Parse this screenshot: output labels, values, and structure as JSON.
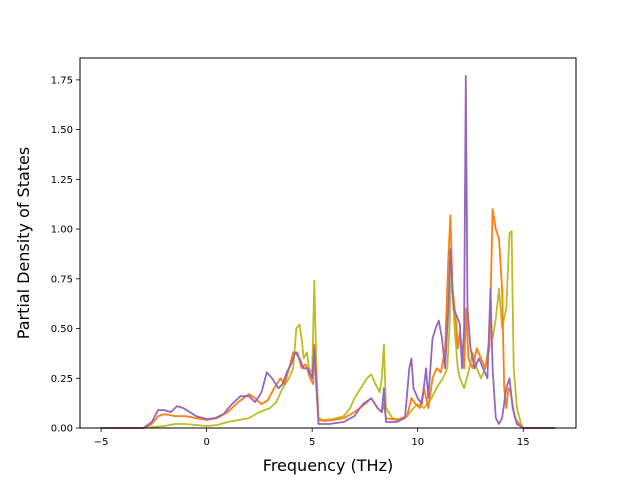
{
  "chart_data": {
    "type": "line",
    "title": "",
    "xlabel": "Frequency (THz)",
    "ylabel": "Partial Density of States",
    "xlim": [
      -6.0,
      17.5
    ],
    "ylim": [
      0.0,
      1.86
    ],
    "xticks": [
      -5,
      0,
      5,
      10,
      15
    ],
    "xtick_labels": [
      "−5",
      "0",
      "5",
      "10",
      "15"
    ],
    "yticks": [
      0.0,
      0.25,
      0.5,
      0.75,
      1.0,
      1.25,
      1.5,
      1.75
    ],
    "ytick_labels": [
      "0.00",
      "0.25",
      "0.50",
      "0.75",
      "1.00",
      "1.25",
      "1.50",
      "1.75"
    ],
    "grid": false,
    "legend": "none",
    "series": [
      {
        "color": "#bcbd22",
        "points": [
          [
            -5.0,
            0
          ],
          [
            -3.0,
            0
          ],
          [
            -2.5,
            0.005
          ],
          [
            -2.0,
            0.01
          ],
          [
            -1.5,
            0.02
          ],
          [
            -1.0,
            0.02
          ],
          [
            -0.5,
            0.015
          ],
          [
            0.0,
            0.01
          ],
          [
            0.5,
            0.015
          ],
          [
            1.0,
            0.03
          ],
          [
            1.5,
            0.04
          ],
          [
            2.0,
            0.05
          ],
          [
            2.5,
            0.08
          ],
          [
            3.0,
            0.1
          ],
          [
            3.3,
            0.13
          ],
          [
            3.6,
            0.2
          ],
          [
            3.9,
            0.25
          ],
          [
            4.1,
            0.3
          ],
          [
            4.25,
            0.5
          ],
          [
            4.4,
            0.52
          ],
          [
            4.5,
            0.45
          ],
          [
            4.6,
            0.35
          ],
          [
            4.75,
            0.38
          ],
          [
            4.85,
            0.3
          ],
          [
            5.0,
            0.28
          ],
          [
            5.1,
            0.74
          ],
          [
            5.2,
            0.3
          ],
          [
            5.3,
            0.05
          ],
          [
            5.5,
            0.04
          ],
          [
            6.0,
            0.045
          ],
          [
            6.5,
            0.06
          ],
          [
            6.8,
            0.1
          ],
          [
            7.0,
            0.15
          ],
          [
            7.3,
            0.2
          ],
          [
            7.6,
            0.25
          ],
          [
            7.8,
            0.27
          ],
          [
            8.0,
            0.22
          ],
          [
            8.2,
            0.18
          ],
          [
            8.3,
            0.25
          ],
          [
            8.4,
            0.42
          ],
          [
            8.5,
            0.1
          ],
          [
            8.8,
            0.05
          ],
          [
            9.2,
            0.04
          ],
          [
            9.5,
            0.06
          ],
          [
            9.8,
            0.1
          ],
          [
            10.0,
            0.12
          ],
          [
            10.3,
            0.1
          ],
          [
            10.6,
            0.14
          ],
          [
            10.8,
            0.18
          ],
          [
            11.0,
            0.22
          ],
          [
            11.2,
            0.25
          ],
          [
            11.4,
            0.3
          ],
          [
            11.5,
            0.5
          ],
          [
            11.6,
            0.8
          ],
          [
            11.75,
            0.5
          ],
          [
            11.9,
            0.3
          ],
          [
            12.0,
            0.25
          ],
          [
            12.2,
            0.2
          ],
          [
            12.4,
            0.28
          ],
          [
            12.6,
            0.38
          ],
          [
            12.8,
            0.3
          ],
          [
            13.0,
            0.25
          ],
          [
            13.2,
            0.3
          ],
          [
            13.4,
            0.45
          ],
          [
            13.55,
            0.45
          ],
          [
            13.7,
            0.55
          ],
          [
            13.85,
            0.7
          ],
          [
            14.0,
            0.5
          ],
          [
            14.2,
            0.6
          ],
          [
            14.35,
            0.98
          ],
          [
            14.45,
            0.99
          ],
          [
            14.55,
            0.3
          ],
          [
            14.7,
            0.1
          ],
          [
            14.9,
            0.02
          ],
          [
            15.0,
            0
          ],
          [
            16.5,
            0
          ]
        ]
      },
      {
        "color": "#ff7f0e",
        "points": [
          [
            -5.0,
            0
          ],
          [
            -3.0,
            0
          ],
          [
            -2.6,
            0.02
          ],
          [
            -2.3,
            0.06
          ],
          [
            -2.0,
            0.07
          ],
          [
            -1.5,
            0.06
          ],
          [
            -1.0,
            0.06
          ],
          [
            -0.5,
            0.05
          ],
          [
            0.0,
            0.04
          ],
          [
            0.5,
            0.05
          ],
          [
            1.0,
            0.08
          ],
          [
            1.5,
            0.13
          ],
          [
            2.0,
            0.17
          ],
          [
            2.3,
            0.15
          ],
          [
            2.6,
            0.12
          ],
          [
            2.9,
            0.14
          ],
          [
            3.2,
            0.2
          ],
          [
            3.5,
            0.25
          ],
          [
            3.7,
            0.22
          ],
          [
            3.9,
            0.3
          ],
          [
            4.1,
            0.38
          ],
          [
            4.3,
            0.38
          ],
          [
            4.5,
            0.3
          ],
          [
            4.7,
            0.32
          ],
          [
            4.9,
            0.25
          ],
          [
            5.05,
            0.22
          ],
          [
            5.1,
            0.42
          ],
          [
            5.2,
            0.25
          ],
          [
            5.3,
            0.04
          ],
          [
            5.6,
            0.035
          ],
          [
            6.0,
            0.04
          ],
          [
            6.5,
            0.05
          ],
          [
            7.0,
            0.08
          ],
          [
            7.5,
            0.12
          ],
          [
            7.8,
            0.15
          ],
          [
            8.1,
            0.1
          ],
          [
            8.3,
            0.08
          ],
          [
            8.4,
            0.12
          ],
          [
            8.5,
            0.05
          ],
          [
            9.0,
            0.04
          ],
          [
            9.5,
            0.06
          ],
          [
            9.7,
            0.15
          ],
          [
            9.9,
            0.12
          ],
          [
            10.1,
            0.1
          ],
          [
            10.3,
            0.2
          ],
          [
            10.5,
            0.1
          ],
          [
            10.7,
            0.25
          ],
          [
            10.9,
            0.3
          ],
          [
            11.1,
            0.28
          ],
          [
            11.3,
            0.4
          ],
          [
            11.45,
            0.85
          ],
          [
            11.55,
            1.07
          ],
          [
            11.65,
            0.7
          ],
          [
            11.8,
            0.55
          ],
          [
            11.9,
            0.4
          ],
          [
            12.0,
            0.48
          ],
          [
            12.2,
            0.3
          ],
          [
            12.3,
            0.6
          ],
          [
            12.4,
            0.35
          ],
          [
            12.6,
            0.3
          ],
          [
            12.8,
            0.4
          ],
          [
            13.0,
            0.35
          ],
          [
            13.2,
            0.3
          ],
          [
            13.4,
            0.4
          ],
          [
            13.55,
            1.1
          ],
          [
            13.7,
            1.0
          ],
          [
            13.85,
            0.95
          ],
          [
            14.0,
            0.7
          ],
          [
            14.1,
            0.2
          ],
          [
            14.2,
            0.1
          ],
          [
            14.3,
            0.2
          ],
          [
            14.4,
            0.18
          ],
          [
            14.6,
            0.05
          ],
          [
            14.9,
            0.01
          ],
          [
            15.0,
            0
          ],
          [
            16.5,
            0
          ]
        ]
      },
      {
        "color": "#9467bd",
        "points": [
          [
            -5.0,
            0
          ],
          [
            -3.0,
            0
          ],
          [
            -2.6,
            0.03
          ],
          [
            -2.3,
            0.09
          ],
          [
            -2.0,
            0.09
          ],
          [
            -1.7,
            0.08
          ],
          [
            -1.4,
            0.11
          ],
          [
            -1.1,
            0.1
          ],
          [
            -0.8,
            0.08
          ],
          [
            -0.5,
            0.06
          ],
          [
            0.0,
            0.045
          ],
          [
            0.4,
            0.05
          ],
          [
            0.8,
            0.07
          ],
          [
            1.2,
            0.12
          ],
          [
            1.6,
            0.16
          ],
          [
            2.0,
            0.16
          ],
          [
            2.3,
            0.13
          ],
          [
            2.6,
            0.18
          ],
          [
            2.85,
            0.28
          ],
          [
            3.1,
            0.25
          ],
          [
            3.4,
            0.2
          ],
          [
            3.6,
            0.22
          ],
          [
            3.8,
            0.28
          ],
          [
            4.0,
            0.32
          ],
          [
            4.2,
            0.38
          ],
          [
            4.4,
            0.35
          ],
          [
            4.6,
            0.3
          ],
          [
            4.8,
            0.3
          ],
          [
            5.0,
            0.25
          ],
          [
            5.1,
            0.4
          ],
          [
            5.2,
            0.2
          ],
          [
            5.3,
            0.02
          ],
          [
            5.8,
            0.02
          ],
          [
            6.5,
            0.03
          ],
          [
            7.0,
            0.06
          ],
          [
            7.4,
            0.12
          ],
          [
            7.8,
            0.15
          ],
          [
            8.1,
            0.1
          ],
          [
            8.3,
            0.08
          ],
          [
            8.4,
            0.2
          ],
          [
            8.5,
            0.03
          ],
          [
            9.0,
            0.03
          ],
          [
            9.4,
            0.05
          ],
          [
            9.6,
            0.3
          ],
          [
            9.7,
            0.35
          ],
          [
            9.8,
            0.2
          ],
          [
            10.0,
            0.15
          ],
          [
            10.2,
            0.12
          ],
          [
            10.4,
            0.3
          ],
          [
            10.5,
            0.15
          ],
          [
            10.7,
            0.45
          ],
          [
            10.85,
            0.5
          ],
          [
            11.0,
            0.54
          ],
          [
            11.15,
            0.45
          ],
          [
            11.3,
            0.3
          ],
          [
            11.45,
            0.6
          ],
          [
            11.55,
            0.9
          ],
          [
            11.7,
            0.6
          ],
          [
            11.9,
            0.55
          ],
          [
            12.0,
            0.52
          ],
          [
            12.1,
            0.3
          ],
          [
            12.2,
            0.5
          ],
          [
            12.28,
            1.77
          ],
          [
            12.36,
            0.6
          ],
          [
            12.5,
            0.4
          ],
          [
            12.7,
            0.3
          ],
          [
            12.9,
            0.35
          ],
          [
            13.1,
            0.3
          ],
          [
            13.3,
            0.25
          ],
          [
            13.45,
            0.7
          ],
          [
            13.55,
            0.3
          ],
          [
            13.7,
            0.05
          ],
          [
            13.85,
            0.02
          ],
          [
            14.0,
            0.05
          ],
          [
            14.2,
            0.2
          ],
          [
            14.35,
            0.25
          ],
          [
            14.5,
            0.1
          ],
          [
            14.7,
            0.02
          ],
          [
            15.0,
            0
          ],
          [
            16.5,
            0
          ]
        ]
      }
    ]
  }
}
